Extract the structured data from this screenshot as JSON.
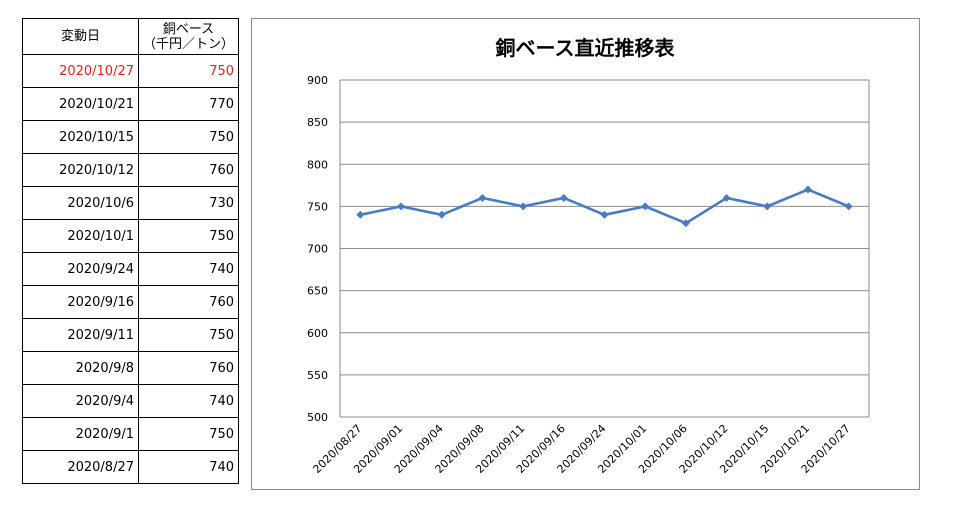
{
  "table": {
    "header_date": "変動日",
    "header_price_line1": "銅ベース",
    "header_price_line2": "（千円／トン）",
    "rows": [
      {
        "date": "2020/10/27",
        "price": "750",
        "highlight": true
      },
      {
        "date": "2020/10/21",
        "price": "770"
      },
      {
        "date": "2020/10/15",
        "price": "750"
      },
      {
        "date": "2020/10/12",
        "price": "760"
      },
      {
        "date": "2020/10/6",
        "price": "730"
      },
      {
        "date": "2020/10/1",
        "price": "750"
      },
      {
        "date": "2020/9/24",
        "price": "740"
      },
      {
        "date": "2020/9/16",
        "price": "760"
      },
      {
        "date": "2020/9/11",
        "price": "750"
      },
      {
        "date": "2020/9/8",
        "price": "760"
      },
      {
        "date": "2020/9/4",
        "price": "740"
      },
      {
        "date": "2020/9/1",
        "price": "750"
      },
      {
        "date": "2020/8/27",
        "price": "740"
      }
    ]
  },
  "colors": {
    "line": "#4a7cc2",
    "grid": "#8c8c8c",
    "highlight_text": "#e8201c"
  },
  "chart_data": {
    "type": "line",
    "title": "銅ベース直近推移表",
    "xlabel": "",
    "ylabel": "",
    "categories": [
      "2020/08/27",
      "2020/09/01",
      "2020/09/04",
      "2020/09/08",
      "2020/09/11",
      "2020/09/16",
      "2020/09/24",
      "2020/10/01",
      "2020/10/06",
      "2020/10/12",
      "2020/10/15",
      "2020/10/21",
      "2020/10/27"
    ],
    "series": [
      {
        "values": [
          740,
          750,
          740,
          760,
          750,
          760,
          740,
          750,
          730,
          760,
          750,
          770,
          750
        ]
      }
    ],
    "ylim": [
      500,
      900
    ],
    "yticks": [
      500,
      550,
      600,
      650,
      700,
      750,
      800,
      850,
      900
    ],
    "grid": "horizontal",
    "marker": "diamond",
    "legend": "none"
  }
}
